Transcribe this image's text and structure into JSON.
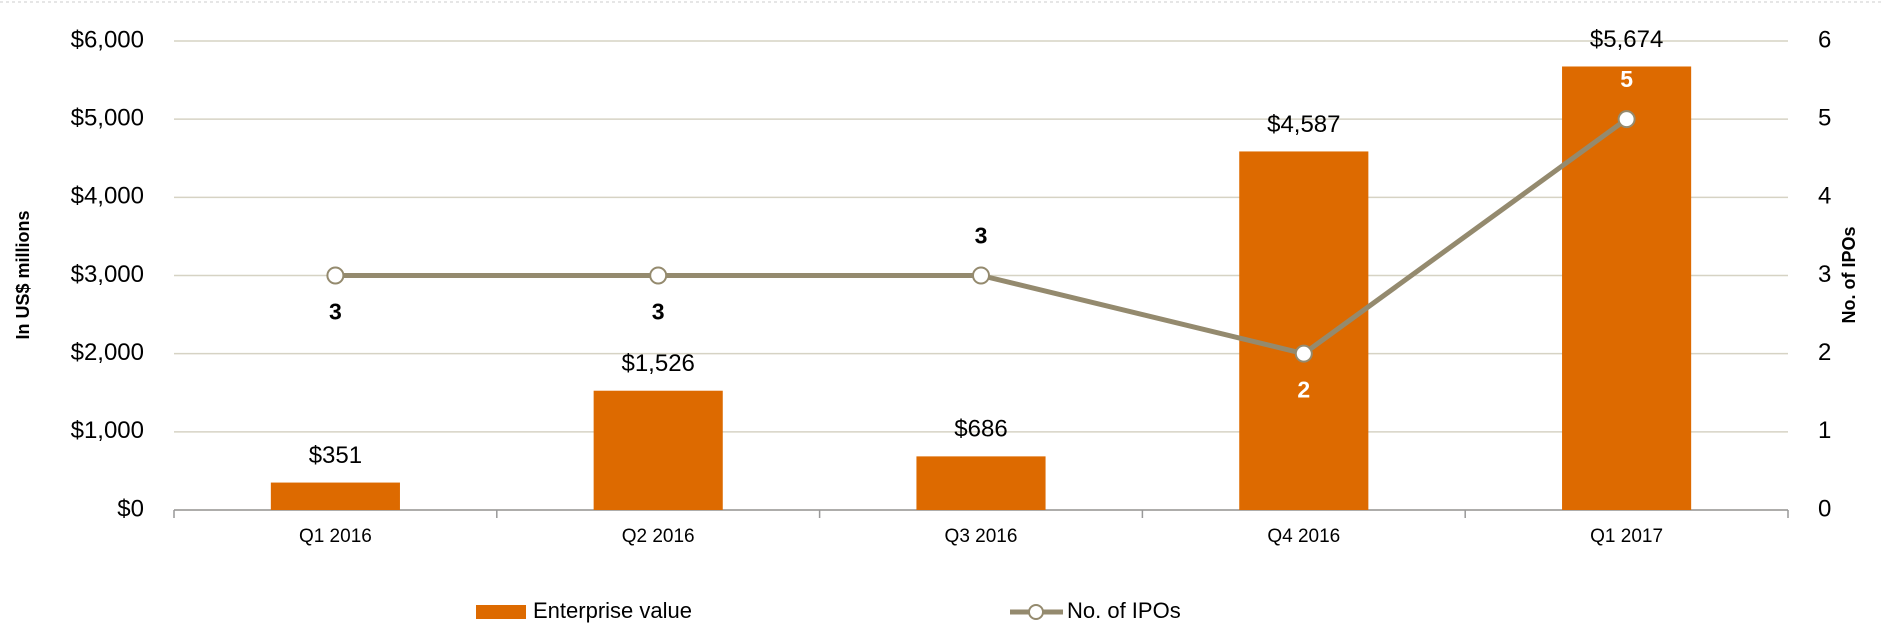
{
  "chart_data": {
    "type": "bar",
    "categories": [
      "Q1 2016",
      "Q2 2016",
      "Q3 2016",
      "Q4 2016",
      "Q1 2017"
    ],
    "series": [
      {
        "name": "Enterprise value",
        "color": "#dd6a00",
        "values": [
          351,
          1526,
          686,
          4587,
          5674
        ],
        "value_labels": [
          "$351",
          "$1,526",
          "$686",
          "$4,587",
          "$5,674"
        ]
      },
      {
        "name": "No. of IPOs",
        "type": "line",
        "axis": "y2",
        "color": "#948a6e",
        "values": [
          3,
          3,
          3,
          2,
          5
        ]
      }
    ],
    "ylabel": "In US$ millions",
    "y2label": "No. of IPOs",
    "ylim": [
      0,
      6000
    ],
    "yticks": [
      {
        "value": 0,
        "label": "$0"
      },
      {
        "value": 1000,
        "label": "$1,000"
      },
      {
        "value": 2000,
        "label": "$2,000"
      },
      {
        "value": 3000,
        "label": "$3,000"
      },
      {
        "value": 4000,
        "label": "$4,000"
      },
      {
        "value": 5000,
        "label": "$5,000"
      },
      {
        "value": 6000,
        "label": "$6,000"
      }
    ],
    "y2lim": [
      0,
      6
    ],
    "y2ticks": [
      0,
      1,
      2,
      3,
      4,
      5,
      6
    ],
    "grid": true,
    "legend": "bottom"
  }
}
